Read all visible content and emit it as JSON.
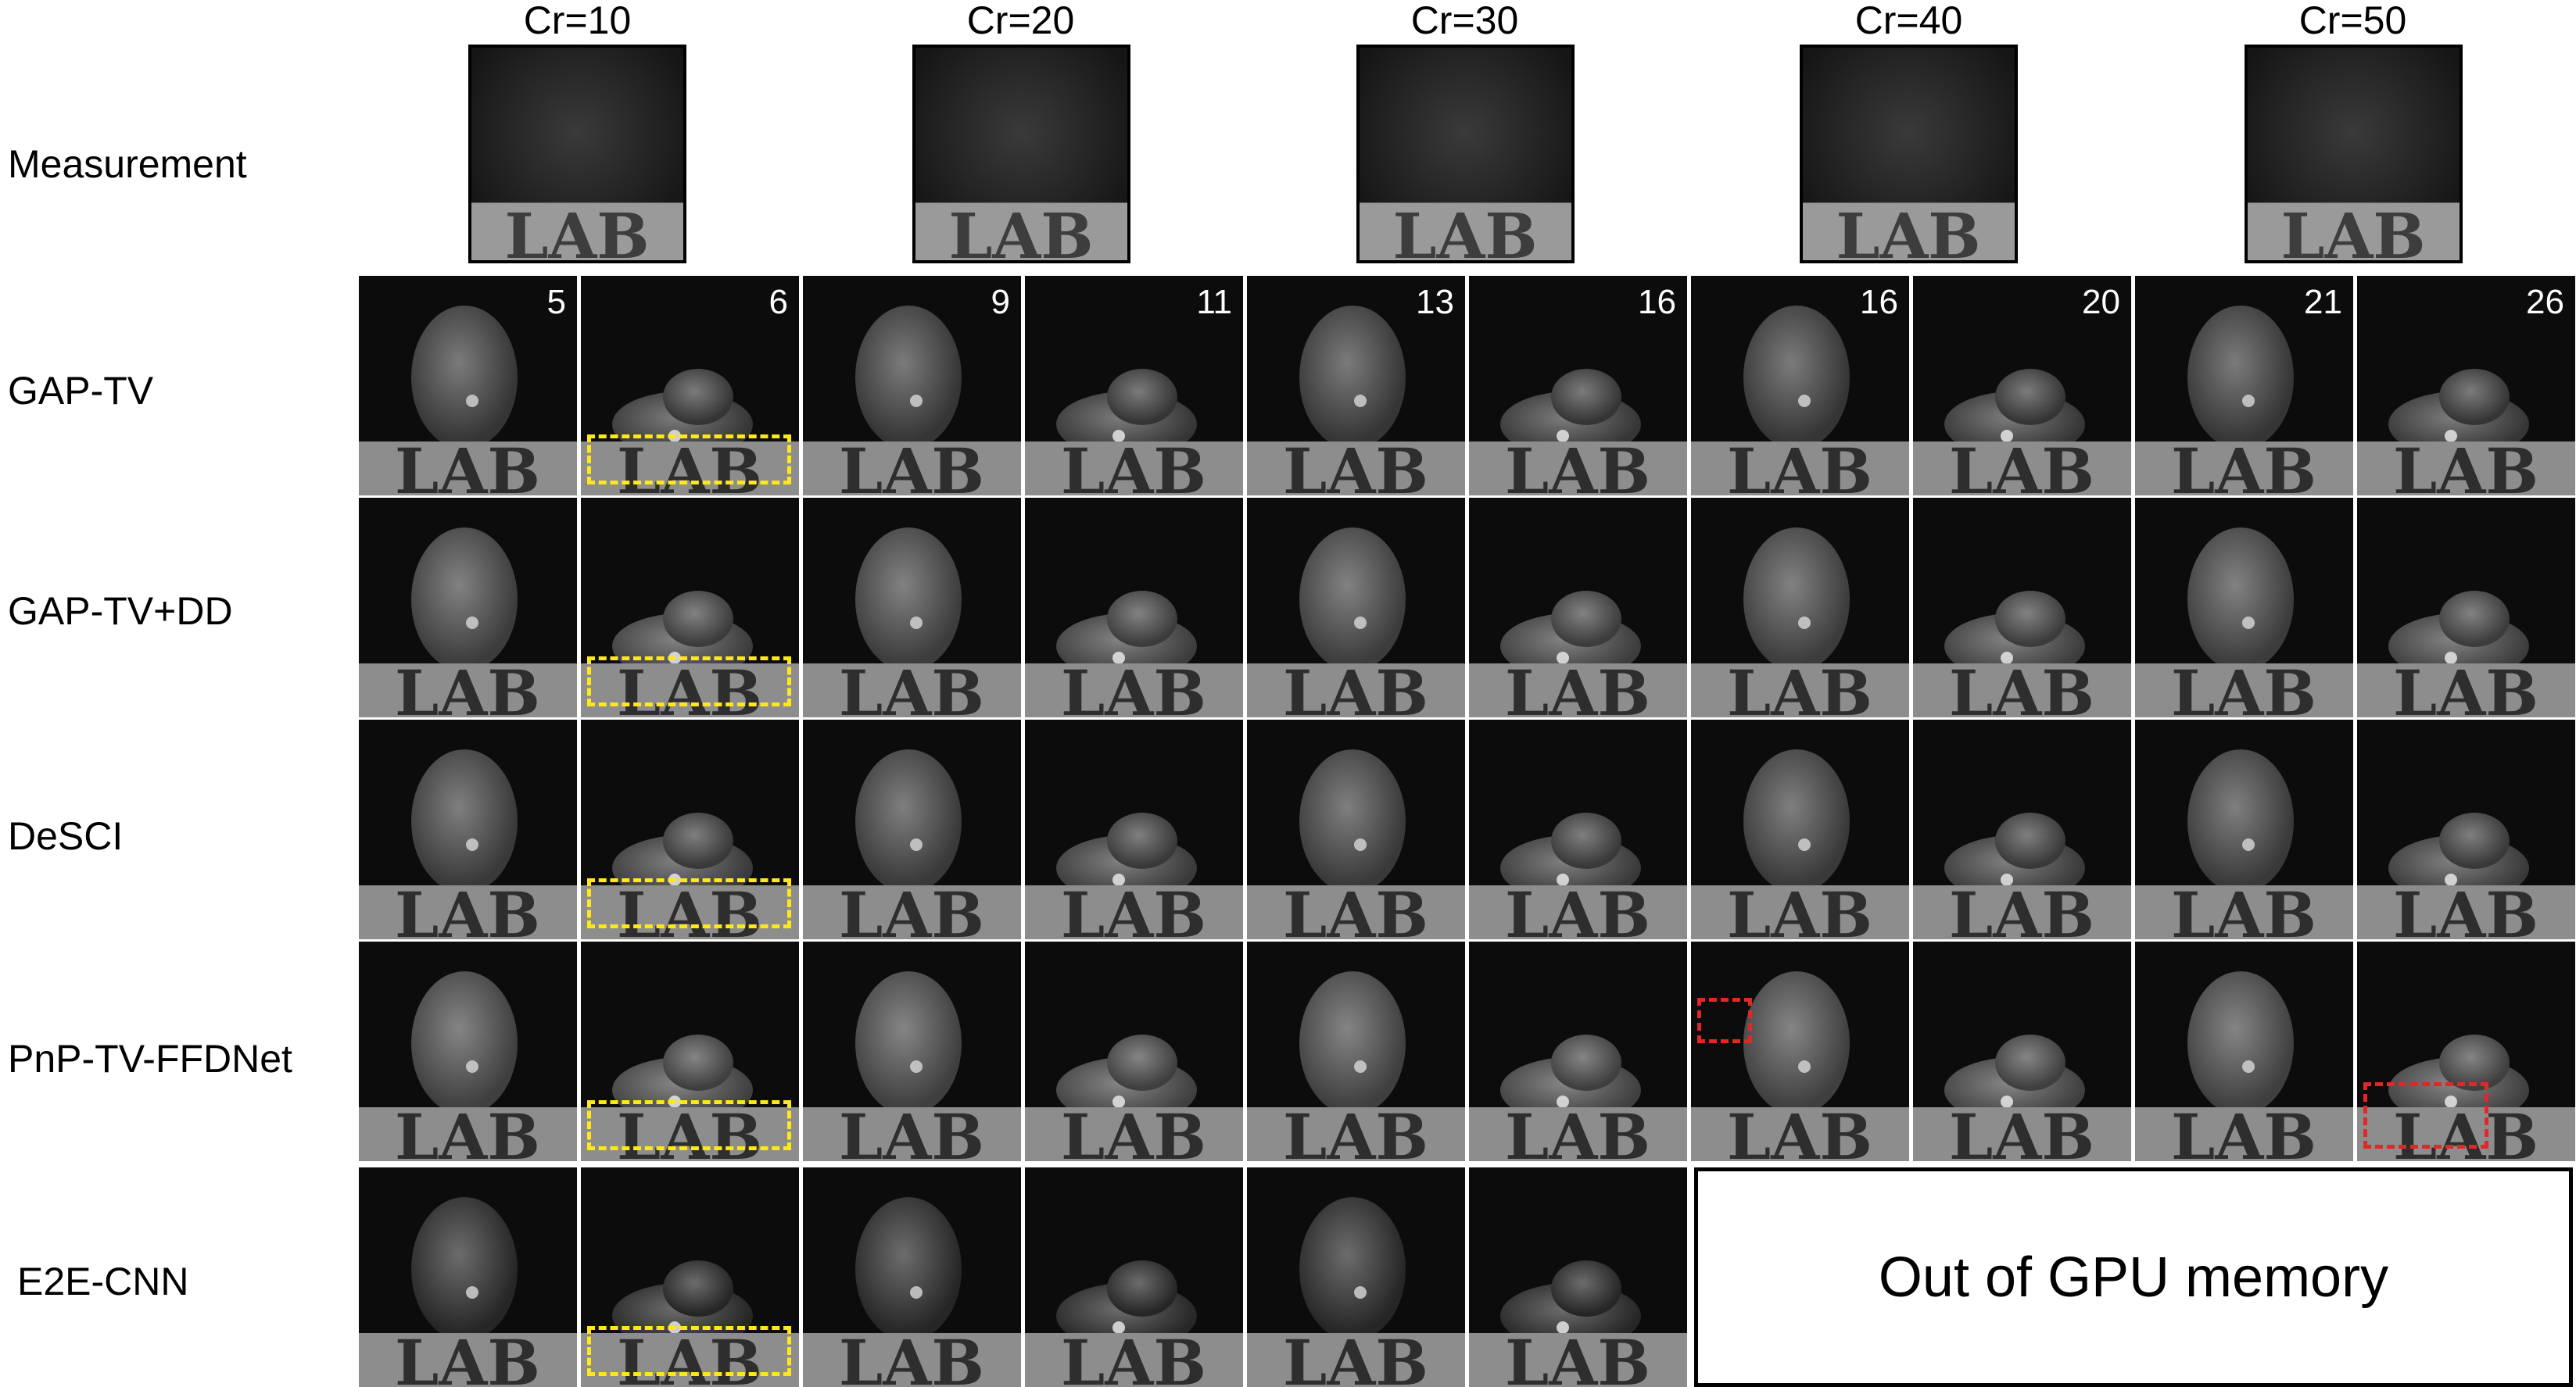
{
  "compression_ratios": [
    "Cr=10",
    "Cr=20",
    "Cr=30",
    "Cr=40",
    "Cr=50"
  ],
  "row_labels": [
    "Measurement",
    "GAP-TV",
    "GAP-TV+DD",
    "DeSCI",
    "PnP-TV-FFDNet",
    "E2E-CNN"
  ],
  "frame_numbers": [
    "5",
    "6",
    "9",
    "11",
    "13",
    "16",
    "16",
    "20",
    "21",
    "26"
  ],
  "gpu_message": "Out of GPU memory",
  "colors": {
    "highlight_yellow": "#ffe81a",
    "highlight_red": "#e12828",
    "background": "#ffffff"
  },
  "measurement_sign_text": "LAB"
}
